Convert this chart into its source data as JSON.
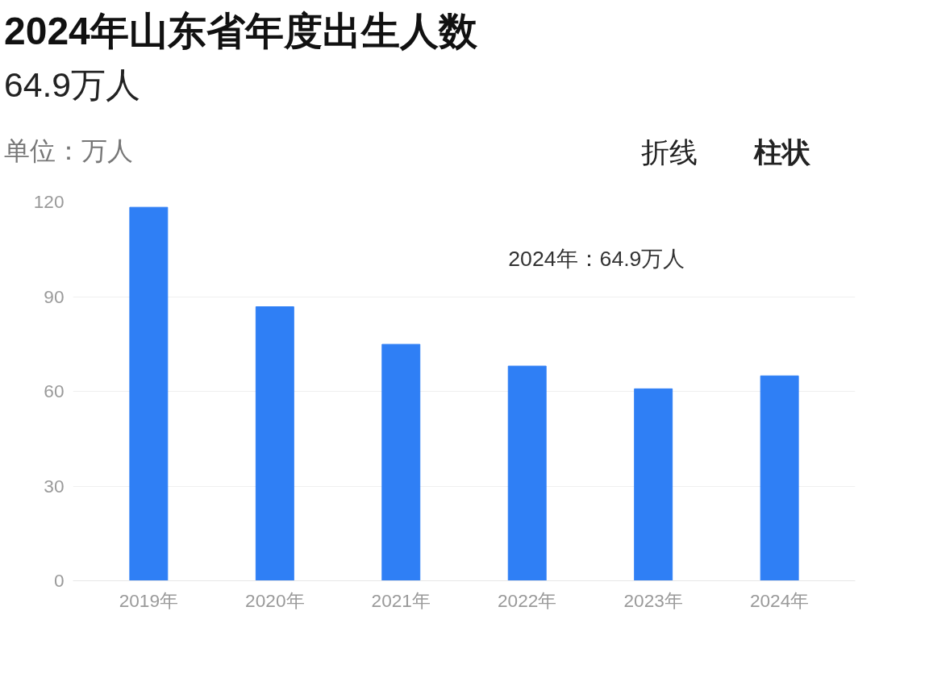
{
  "chart_data": {
    "type": "bar",
    "title": "2024年山东省年度出生人数",
    "subtitle": "64.9万人",
    "ylabel": "单位：万人",
    "categories": [
      "2019年",
      "2020年",
      "2021年",
      "2022年",
      "2023年",
      "2024年"
    ],
    "values": [
      118.3,
      86.8,
      74.9,
      68.0,
      60.8,
      64.9
    ],
    "color": "#2f7ff5",
    "ylim": [
      0,
      120
    ],
    "yticks": [
      0,
      30,
      60,
      90,
      120
    ],
    "grid": "y",
    "annotations": [
      "折线",
      "柱状",
      "2024年：64.9万人"
    ]
  }
}
